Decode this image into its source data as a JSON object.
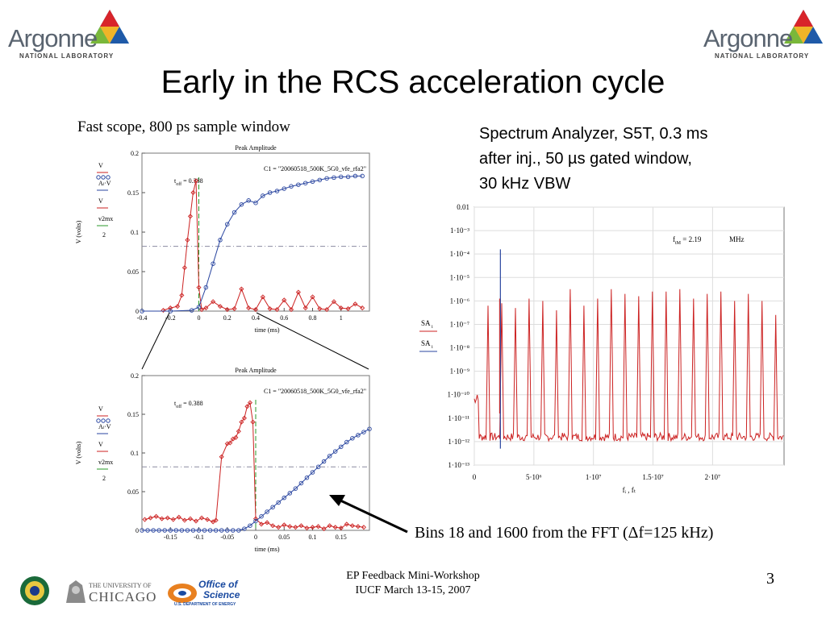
{
  "logos": {
    "argonne_word": "Argonne",
    "argonne_sub": "NATIONAL LABORATORY",
    "uchicago_top": "THE UNIVERSITY OF",
    "uchicago_bottom": "CHICAGO",
    "science_top": "Office of",
    "science_bottom": "Science",
    "science_sub": "U.S. DEPARTMENT OF ENERGY"
  },
  "title": "Early in the RCS acceleration cycle",
  "fast_scope_label": "Fast scope, 800 ps sample window",
  "spectrum_label": {
    "line1": "Spectrum Analyzer, S5T, 0.3 ms",
    "line2": "after inj., 50 µs gated window,",
    "line3": "30 kHz VBW"
  },
  "bins_label": "Bins 18 and 1600 from the FFT (Δf=125 kHz)",
  "footer": {
    "line1": "EP Feedback Mini-Workshop",
    "line2": "IUCF March 13-15, 2007"
  },
  "page_number": "3",
  "colors": {
    "red_trace": "#cc2222",
    "blue_trace": "#2a46a0",
    "green_line": "#2a9a2a",
    "threshold": "#8a8aa0"
  },
  "chart_data": [
    {
      "type": "scatter",
      "title": "Peak Amplitude",
      "annotation": "C1 = \"20060518_500K_5G0_vfe_rfa2\"",
      "toff_label": "t",
      "toff_sub": "off",
      "toff_value": "= 0.388",
      "xlabel": "time (ms)",
      "ylabel": "V (volts)",
      "xlim": [
        -0.4,
        1.2
      ],
      "ylim": [
        0,
        0.2
      ],
      "xticks": [
        "-0.4",
        "-0.2",
        "0",
        "0.2",
        "0.4",
        "0.6",
        "0.8",
        "1"
      ],
      "xtick_values": [
        -0.4,
        -0.2,
        0,
        0.2,
        0.4,
        0.6,
        0.8,
        1.0
      ],
      "yticks": [
        "0",
        "0.05",
        "0.1",
        "0.15",
        "0.2"
      ],
      "ytick_values": [
        0,
        0.05,
        0.1,
        0.15,
        0.2
      ],
      "threshold": 0.082,
      "green_x": 0.0,
      "legend": [
        "V",
        "Aₗ·V",
        "V",
        "v2mx"
      ],
      "legend_fraction": "2",
      "series": [
        {
          "color": "red",
          "x": [
            -0.25,
            -0.2,
            -0.15,
            -0.12,
            -0.1,
            -0.08,
            -0.06,
            -0.04,
            -0.02,
            0.0,
            0.02,
            0.05,
            0.1,
            0.15,
            0.2,
            0.25,
            0.3,
            0.35,
            0.4,
            0.45,
            0.5,
            0.55,
            0.6,
            0.65,
            0.7,
            0.75,
            0.8,
            0.85,
            0.9,
            0.95,
            1.0,
            1.05,
            1.1,
            1.15
          ],
          "y": [
            0.001,
            0.004,
            0.006,
            0.02,
            0.055,
            0.09,
            0.12,
            0.15,
            0.165,
            0.03,
            0.002,
            0.004,
            0.012,
            0.006,
            0.002,
            0.003,
            0.028,
            0.004,
            0.002,
            0.018,
            0.003,
            0.002,
            0.014,
            0.002,
            0.024,
            0.004,
            0.018,
            0.003,
            0.002,
            0.012,
            0.004,
            0.003,
            0.009,
            0.004
          ]
        },
        {
          "color": "blue",
          "x": [
            -0.4,
            -0.2,
            -0.05,
            0.0,
            0.05,
            0.1,
            0.15,
            0.2,
            0.25,
            0.3,
            0.35,
            0.4,
            0.45,
            0.5,
            0.55,
            0.6,
            0.65,
            0.7,
            0.75,
            0.8,
            0.85,
            0.9,
            0.95,
            1.0,
            1.05,
            1.1,
            1.15
          ],
          "y": [
            0.0,
            0.0,
            0.001,
            0.005,
            0.03,
            0.06,
            0.09,
            0.11,
            0.125,
            0.135,
            0.14,
            0.137,
            0.146,
            0.15,
            0.152,
            0.155,
            0.158,
            0.16,
            0.162,
            0.164,
            0.166,
            0.168,
            0.169,
            0.17,
            0.17,
            0.171,
            0.171
          ]
        }
      ]
    },
    {
      "type": "scatter",
      "title": "Peak Amplitude",
      "annotation": "C1 = \"20060518_500K_5G0_vfe_rfa2\"",
      "toff_label": "t",
      "toff_sub": "off",
      "toff_value": "= 0.388",
      "xlabel": "time (ms)",
      "ylabel": "V (volts)",
      "xlim": [
        -0.2,
        0.2
      ],
      "ylim": [
        0,
        0.2
      ],
      "xticks": [
        "-0.15",
        "-0.1",
        "-0.05",
        "0",
        "0.05",
        "0.1",
        "0.15"
      ],
      "xtick_values": [
        -0.15,
        -0.1,
        -0.05,
        0,
        0.05,
        0.1,
        0.15
      ],
      "yticks": [
        "0",
        "0.05",
        "0.1",
        "0.15",
        "0.2"
      ],
      "ytick_values": [
        0,
        0.05,
        0.1,
        0.15,
        0.2
      ],
      "threshold": 0.082,
      "green_x": 0.0,
      "legend": [
        "V",
        "Aₗ·V",
        "V",
        "v2mx"
      ],
      "legend_fraction": "2",
      "series": [
        {
          "color": "red",
          "x": [
            -0.195,
            -0.185,
            -0.175,
            -0.165,
            -0.155,
            -0.145,
            -0.135,
            -0.125,
            -0.115,
            -0.105,
            -0.095,
            -0.085,
            -0.075,
            -0.07,
            -0.06,
            -0.05,
            -0.045,
            -0.04,
            -0.035,
            -0.03,
            -0.025,
            -0.02,
            -0.015,
            -0.01,
            -0.005,
            0.0,
            0.01,
            0.02,
            0.03,
            0.04,
            0.05,
            0.06,
            0.07,
            0.08,
            0.09,
            0.1,
            0.11,
            0.12,
            0.13,
            0.14,
            0.15,
            0.16,
            0.17,
            0.18,
            0.19
          ],
          "y": [
            0.014,
            0.016,
            0.018,
            0.015,
            0.016,
            0.014,
            0.017,
            0.013,
            0.015,
            0.012,
            0.016,
            0.014,
            0.011,
            0.013,
            0.095,
            0.112,
            0.113,
            0.118,
            0.12,
            0.128,
            0.14,
            0.145,
            0.16,
            0.165,
            0.14,
            0.015,
            0.008,
            0.01,
            0.006,
            0.004,
            0.007,
            0.005,
            0.004,
            0.006,
            0.003,
            0.004,
            0.005,
            0.002,
            0.006,
            0.004,
            0.003,
            0.008,
            0.006,
            0.005,
            0.004
          ]
        },
        {
          "color": "blue",
          "x": [
            -0.2,
            -0.19,
            -0.18,
            -0.17,
            -0.16,
            -0.15,
            -0.14,
            -0.13,
            -0.12,
            -0.11,
            -0.1,
            -0.09,
            -0.08,
            -0.07,
            -0.06,
            -0.05,
            -0.04,
            -0.03,
            -0.02,
            -0.01,
            0.0,
            0.01,
            0.02,
            0.03,
            0.04,
            0.05,
            0.06,
            0.07,
            0.08,
            0.09,
            0.1,
            0.11,
            0.12,
            0.13,
            0.14,
            0.15,
            0.16,
            0.17,
            0.18,
            0.19,
            0.2
          ],
          "y": [
            0.0,
            0.0,
            0.0,
            0.0,
            0.0,
            0.0,
            0.0,
            0.0,
            0.0,
            0.0,
            0.0,
            0.0,
            0.0,
            0.0,
            0.0,
            0.0,
            0.0,
            0.0,
            0.002,
            0.006,
            0.012,
            0.018,
            0.024,
            0.03,
            0.036,
            0.042,
            0.048,
            0.054,
            0.061,
            0.068,
            0.075,
            0.082,
            0.089,
            0.096,
            0.102,
            0.108,
            0.114,
            0.119,
            0.123,
            0.127,
            0.131
          ]
        }
      ]
    },
    {
      "type": "line",
      "xlabel": "fᵢ , fₜ",
      "legend": [
        "SA",
        "SA"
      ],
      "legend_sub": "i",
      "annotation_label": "f",
      "annotation_sub": "tM",
      "annotation_value": "= 2.19",
      "annotation_unit": "MHz",
      "log_y": true,
      "xlim": [
        0,
        26000000.0
      ],
      "ylim_exp": [
        -13,
        -2
      ],
      "xticks": [
        "0",
        "5·10⁶",
        "1·10⁷",
        "1.5·10⁷",
        "2·10⁷"
      ],
      "xtick_values": [
        0,
        5000000.0,
        10000000.0,
        15000000.0,
        20000000.0
      ],
      "yticks": [
        "0.01",
        "1·10⁻³",
        "1·10⁻⁴",
        "1·10⁻⁵",
        "1·10⁻⁶",
        "1·10⁻⁷",
        "1·10⁻⁸",
        "1·10⁻⁹",
        "1·10⁻¹⁰",
        "1·10⁻¹¹",
        "1·10⁻¹²",
        "1·10⁻¹³"
      ],
      "ytick_exponents": [
        -2,
        -3,
        -4,
        -5,
        -6,
        -7,
        -8,
        -9,
        -10,
        -11,
        -12,
        -13
      ],
      "harmonic_spacing": 1150000.0,
      "baseline_exp": -11.8,
      "peaks_exp": [
        -6.2,
        -6.1,
        -6.3,
        -5.9,
        -6.0,
        -6.4,
        -5.5,
        -6.2,
        -5.9,
        -5.5,
        -5.7,
        -5.8,
        -5.6,
        -5.6,
        -5.5,
        -5.9,
        -5.7,
        -5.6,
        -6.0,
        -5.7,
        -6.0,
        -6.6
      ],
      "blue_marker_x": 2190000.0,
      "blue_marker_top_exp": -3.8,
      "red_marker_top_exp": -5.9
    }
  ]
}
